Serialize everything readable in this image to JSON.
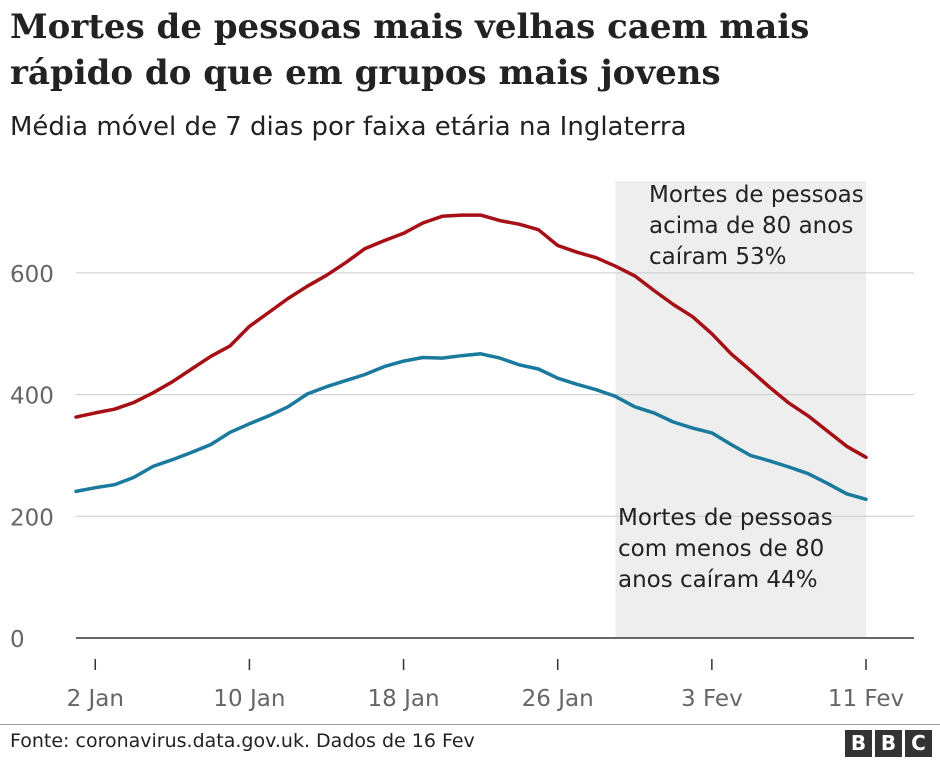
{
  "header": {
    "title": "Mortes de pessoas mais velhas caem mais rápido do que em grupos mais jovens",
    "subtitle": "Média móvel de 7 dias por faixa etária na Inglaterra"
  },
  "footer": {
    "source": "Fonte: coronavirus.data.gov.uk. Dados de 16 Fev",
    "logo_letters": [
      "B",
      "B",
      "C"
    ]
  },
  "chart_data": {
    "type": "line",
    "title": "Mortes de pessoas mais velhas caem mais rápido do que em grupos mais jovens",
    "subtitle": "Média móvel de 7 dias por faixa etária na Inglaterra",
    "xlabel": "",
    "ylabel": "",
    "ylim": [
      0,
      700
    ],
    "yticks": [
      0,
      200,
      400,
      600
    ],
    "grid": true,
    "x_start_day": 1,
    "x_end_day": 42,
    "xticks": [
      {
        "day": 2,
        "label": "2 Jan"
      },
      {
        "day": 10,
        "label": "10 Jan"
      },
      {
        "day": 18,
        "label": "18 Jan"
      },
      {
        "day": 26,
        "label": "26 Jan"
      },
      {
        "day": 34,
        "label": "3 Fev"
      },
      {
        "day": 42,
        "label": "11 Fev"
      }
    ],
    "highlight_range": [
      29,
      42
    ],
    "series": [
      {
        "name": "Acima de 80 anos",
        "color": "#a50f15",
        "values": [
          363,
          370,
          376,
          387,
          403,
          421,
          442,
          463,
          480,
          512,
          535,
          558,
          578,
          596,
          617,
          640,
          653,
          665,
          682,
          693,
          695,
          695,
          686,
          680,
          671,
          645,
          634,
          625,
          611,
          595,
          571,
          548,
          528,
          500,
          467,
          440,
          412,
          386,
          365,
          340,
          315,
          297
        ]
      },
      {
        "name": "Com menos de 80 anos",
        "color": "#1a7a9e",
        "values": [
          241,
          247,
          252,
          264,
          282,
          293,
          305,
          318,
          338,
          352,
          365,
          380,
          401,
          413,
          423,
          433,
          446,
          455,
          461,
          460,
          464,
          467,
          460,
          449,
          442,
          427,
          417,
          408,
          397,
          380,
          370,
          355,
          345,
          337,
          318,
          300,
          291,
          281,
          270,
          254,
          237,
          228
        ]
      }
    ],
    "annotations": [
      {
        "series": 0,
        "lines": [
          "Mortes de pessoas",
          "acima de 80 anos",
          "caíram 53%"
        ]
      },
      {
        "series": 1,
        "lines": [
          "Mortes de pessoas",
          "com menos de 80",
          "anos caíram 44%"
        ]
      }
    ]
  }
}
